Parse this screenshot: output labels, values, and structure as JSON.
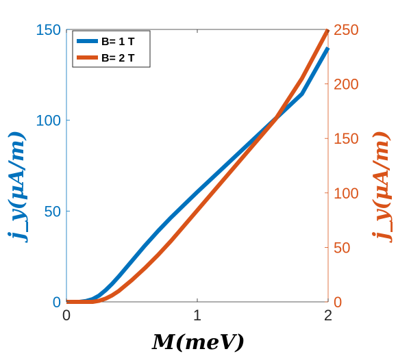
{
  "chart_data": {
    "type": "line",
    "xlabel": "M(meV)",
    "ylabel_left": "j_y(μA/m)",
    "ylabel_right": "j_y(μA/m)",
    "xlim": [
      0,
      2
    ],
    "ylim_left": [
      0,
      150
    ],
    "ylim_right": [
      0,
      250
    ],
    "x_ticks": [
      "0",
      "1",
      "2"
    ],
    "y_ticks_left": [
      "0",
      "50",
      "100",
      "150"
    ],
    "y_ticks_right": [
      "0",
      "50",
      "100",
      "150",
      "200",
      "250"
    ],
    "grid": false,
    "legend_position": "top-left",
    "colors": {
      "left_axis": "#0072BD",
      "right_axis": "#D95319"
    },
    "series": [
      {
        "name": "B= 1 T",
        "axis": "left",
        "color": "#0072BD",
        "x": [
          0,
          0.05,
          0.1,
          0.15,
          0.2,
          0.25,
          0.3,
          0.35,
          0.4,
          0.5,
          0.6,
          0.7,
          0.8,
          0.9,
          1.0,
          1.2,
          1.4,
          1.6,
          1.8,
          2.0
        ],
        "y": [
          0,
          0,
          0,
          0.5,
          1.5,
          3.5,
          6.5,
          10,
          14,
          22.5,
          31,
          39,
          46.5,
          53.5,
          60.5,
          74,
          87.5,
          101,
          114.5,
          140
        ]
      },
      {
        "name": "B= 2 T",
        "axis": "right",
        "color": "#D95319",
        "x": [
          0,
          0.1,
          0.2,
          0.25,
          0.3,
          0.35,
          0.4,
          0.5,
          0.6,
          0.7,
          0.8,
          0.9,
          1.0,
          1.2,
          1.4,
          1.6,
          1.8,
          2.0
        ],
        "y": [
          0,
          0,
          0,
          1,
          3,
          6,
          10,
          20,
          31,
          43,
          56,
          70,
          84,
          112,
          140,
          168,
          205,
          250
        ]
      }
    ]
  }
}
